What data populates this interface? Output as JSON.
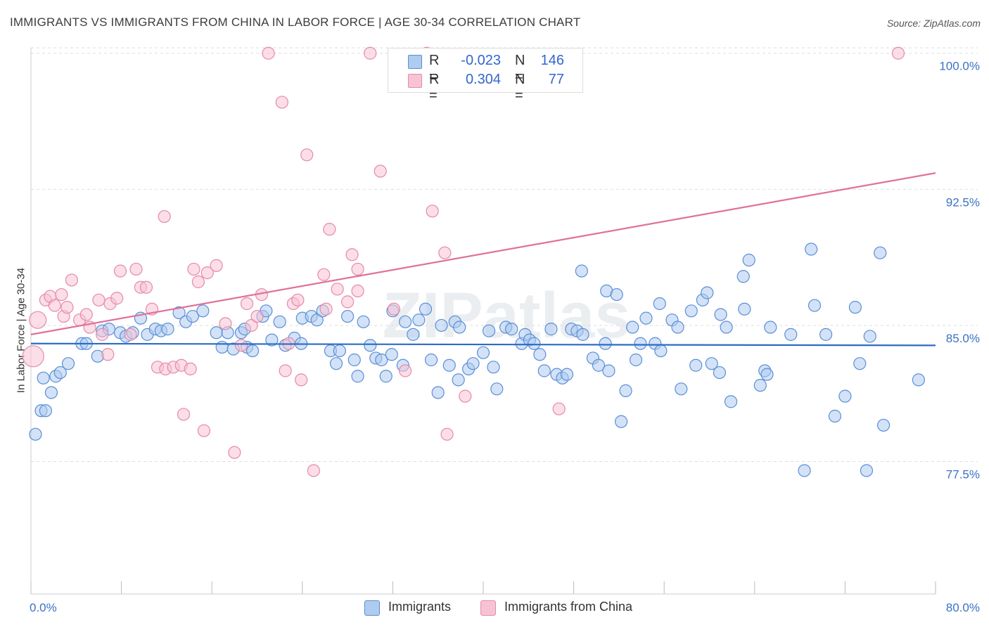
{
  "title": "IMMIGRANTS VS IMMIGRANTS FROM CHINA IN LABOR FORCE | AGE 30-34 CORRELATION CHART",
  "source_label": "Source:",
  "source_value": "ZipAtlas.com",
  "watermark": "ZIPatlas",
  "colors": {
    "blue_fill": "#aecbf0",
    "blue_stroke": "#5a8fd6",
    "blue_line": "#2b6cc4",
    "pink_fill": "#f7c3d3",
    "pink_stroke": "#e68aa8",
    "pink_line": "#e0709a",
    "axis_text": "#3a72c6",
    "grid": "#dddddd"
  },
  "legend": {
    "blue_r_label": "R =",
    "blue_r_value": "-0.023",
    "blue_n_label": "N =",
    "blue_n_value": "146",
    "pink_r_label": "R =",
    "pink_r_value": "0.304",
    "pink_n_label": "N =",
    "pink_n_value": "77",
    "series1": "Immigrants",
    "series2": "Immigrants from China"
  },
  "chart_data": {
    "type": "scatter",
    "title": "IMMIGRANTS VS IMMIGRANTS FROM CHINA IN LABOR FORCE | AGE 30-34 CORRELATION CHART",
    "xlabel": "",
    "ylabel": "In Labor Force | Age 30-34",
    "xlim": [
      0,
      80
    ],
    "ylim": [
      70.2,
      100.3
    ],
    "x_tick_labels": [
      "0.0%",
      "80.0%"
    ],
    "y_ticks": [
      77.5,
      85.0,
      92.5,
      100.0
    ],
    "y_tick_labels": [
      "77.5%",
      "85.0%",
      "92.5%",
      "100.0%"
    ],
    "grid": "horizontal dashed",
    "legend_position": "top-center",
    "series": [
      {
        "name": "Immigrants",
        "trend": [
          [
            0,
            84.0
          ],
          [
            80,
            83.9
          ]
        ],
        "points": [
          [
            0.4,
            79.0
          ],
          [
            0.9,
            80.3
          ],
          [
            1.1,
            82.1
          ],
          [
            1.3,
            80.3
          ],
          [
            1.8,
            81.3
          ],
          [
            2.2,
            82.2
          ],
          [
            2.6,
            82.4
          ],
          [
            3.3,
            82.9
          ],
          [
            4.5,
            84.0
          ],
          [
            4.9,
            84.0
          ],
          [
            5.9,
            83.3
          ],
          [
            6.3,
            84.7
          ],
          [
            6.9,
            84.8
          ],
          [
            7.9,
            84.6
          ],
          [
            8.4,
            84.4
          ],
          [
            9.0,
            84.6
          ],
          [
            9.7,
            85.4
          ],
          [
            10.3,
            84.5
          ],
          [
            11.0,
            84.8
          ],
          [
            11.5,
            84.7
          ],
          [
            12.1,
            84.8
          ],
          [
            13.1,
            85.7
          ],
          [
            13.7,
            85.2
          ],
          [
            14.3,
            85.5
          ],
          [
            15.2,
            85.8
          ],
          [
            16.4,
            84.6
          ],
          [
            16.9,
            83.8
          ],
          [
            17.4,
            84.6
          ],
          [
            17.9,
            83.7
          ],
          [
            18.6,
            84.6
          ],
          [
            18.9,
            84.8
          ],
          [
            19.1,
            83.8
          ],
          [
            19.6,
            83.6
          ],
          [
            20.5,
            85.5
          ],
          [
            20.8,
            85.8
          ],
          [
            21.3,
            84.2
          ],
          [
            22.0,
            85.2
          ],
          [
            22.5,
            83.9
          ],
          [
            23.3,
            84.3
          ],
          [
            23.9,
            84.0
          ],
          [
            24.0,
            85.4
          ],
          [
            24.8,
            85.5
          ],
          [
            25.3,
            85.3
          ],
          [
            25.8,
            85.8
          ],
          [
            26.5,
            83.6
          ],
          [
            27.0,
            82.9
          ],
          [
            27.3,
            83.6
          ],
          [
            28.0,
            85.5
          ],
          [
            28.6,
            83.1
          ],
          [
            28.9,
            82.2
          ],
          [
            29.4,
            85.2
          ],
          [
            30.0,
            83.9
          ],
          [
            30.5,
            83.2
          ],
          [
            31.0,
            83.1
          ],
          [
            31.4,
            82.2
          ],
          [
            31.9,
            83.4
          ],
          [
            32.0,
            85.8
          ],
          [
            32.9,
            82.8
          ],
          [
            33.1,
            85.2
          ],
          [
            33.8,
            84.5
          ],
          [
            34.3,
            85.3
          ],
          [
            34.9,
            85.9
          ],
          [
            35.4,
            83.1
          ],
          [
            36.0,
            81.3
          ],
          [
            36.3,
            85.0
          ],
          [
            37.0,
            82.8
          ],
          [
            37.5,
            85.2
          ],
          [
            37.9,
            84.9
          ],
          [
            37.8,
            82.0
          ],
          [
            38.7,
            82.6
          ],
          [
            39.1,
            82.9
          ],
          [
            40.0,
            83.5
          ],
          [
            40.5,
            84.7
          ],
          [
            40.9,
            82.7
          ],
          [
            41.2,
            81.5
          ],
          [
            42.0,
            84.9
          ],
          [
            42.5,
            84.8
          ],
          [
            43.4,
            84.0
          ],
          [
            43.7,
            84.5
          ],
          [
            44.1,
            84.2
          ],
          [
            44.5,
            84.0
          ],
          [
            45.0,
            83.4
          ],
          [
            45.4,
            82.5
          ],
          [
            46.0,
            84.8
          ],
          [
            46.5,
            82.3
          ],
          [
            47.0,
            82.1
          ],
          [
            47.4,
            82.3
          ],
          [
            47.8,
            84.8
          ],
          [
            48.3,
            84.7
          ],
          [
            48.8,
            84.5
          ],
          [
            48.7,
            88.0
          ],
          [
            49.7,
            83.2
          ],
          [
            50.2,
            82.8
          ],
          [
            50.8,
            84.0
          ],
          [
            50.9,
            86.9
          ],
          [
            51.1,
            82.5
          ],
          [
            51.8,
            86.7
          ],
          [
            52.2,
            79.7
          ],
          [
            52.6,
            81.4
          ],
          [
            53.2,
            84.9
          ],
          [
            53.5,
            83.1
          ],
          [
            53.9,
            84.0
          ],
          [
            54.4,
            85.4
          ],
          [
            55.2,
            84.0
          ],
          [
            55.7,
            83.6
          ],
          [
            55.6,
            86.2
          ],
          [
            56.7,
            85.3
          ],
          [
            57.2,
            84.9
          ],
          [
            57.5,
            81.5
          ],
          [
            58.4,
            85.8
          ],
          [
            58.8,
            82.8
          ],
          [
            59.4,
            86.4
          ],
          [
            59.8,
            86.8
          ],
          [
            60.2,
            82.9
          ],
          [
            61.0,
            85.6
          ],
          [
            60.9,
            82.4
          ],
          [
            61.5,
            84.9
          ],
          [
            61.9,
            80.8
          ],
          [
            63.0,
            87.7
          ],
          [
            63.5,
            88.6
          ],
          [
            63.1,
            85.9
          ],
          [
            64.5,
            81.7
          ],
          [
            64.9,
            82.5
          ],
          [
            65.1,
            82.3
          ],
          [
            65.4,
            84.9
          ],
          [
            67.2,
            84.5
          ],
          [
            68.4,
            77.0
          ],
          [
            69.0,
            89.2
          ],
          [
            69.3,
            86.1
          ],
          [
            70.3,
            84.5
          ],
          [
            71.1,
            80.0
          ],
          [
            72.0,
            81.1
          ],
          [
            72.9,
            86.0
          ],
          [
            73.3,
            82.9
          ],
          [
            73.9,
            77.0
          ],
          [
            74.2,
            84.4
          ],
          [
            75.1,
            89.0
          ],
          [
            75.4,
            79.5
          ],
          [
            78.5,
            82.0
          ]
        ]
      },
      {
        "name": "Immigrants from China",
        "trend": [
          [
            0,
            84.5
          ],
          [
            80,
            93.4
          ]
        ],
        "points": [
          [
            0.2,
            83.3
          ],
          [
            0.6,
            85.3
          ],
          [
            1.3,
            86.4
          ],
          [
            1.7,
            86.6
          ],
          [
            2.1,
            86.1
          ],
          [
            2.7,
            86.7
          ],
          [
            2.9,
            85.5
          ],
          [
            3.2,
            86.0
          ],
          [
            3.6,
            87.5
          ],
          [
            4.3,
            85.3
          ],
          [
            4.9,
            85.6
          ],
          [
            5.2,
            84.9
          ],
          [
            6.0,
            86.4
          ],
          [
            6.3,
            84.5
          ],
          [
            6.8,
            83.4
          ],
          [
            7.0,
            86.2
          ],
          [
            7.6,
            86.5
          ],
          [
            7.9,
            88.0
          ],
          [
            8.8,
            84.5
          ],
          [
            9.3,
            88.1
          ],
          [
            9.7,
            87.1
          ],
          [
            10.2,
            87.1
          ],
          [
            10.7,
            85.9
          ],
          [
            11.2,
            82.7
          ],
          [
            11.8,
            91.0
          ],
          [
            11.9,
            82.6
          ],
          [
            12.6,
            82.7
          ],
          [
            13.3,
            82.8
          ],
          [
            13.5,
            80.1
          ],
          [
            14.1,
            82.6
          ],
          [
            14.8,
            87.4
          ],
          [
            14.4,
            88.1
          ],
          [
            15.3,
            79.2
          ],
          [
            15.6,
            87.9
          ],
          [
            16.4,
            88.3
          ],
          [
            17.2,
            85.1
          ],
          [
            18.0,
            78.0
          ],
          [
            18.6,
            83.9
          ],
          [
            19.1,
            86.2
          ],
          [
            19.5,
            85.0
          ],
          [
            20.0,
            85.5
          ],
          [
            20.4,
            86.7
          ],
          [
            21.0,
            100.0
          ],
          [
            22.2,
            97.3
          ],
          [
            22.5,
            82.5
          ],
          [
            22.8,
            84.0
          ],
          [
            23.2,
            86.2
          ],
          [
            23.6,
            86.4
          ],
          [
            23.9,
            82.0
          ],
          [
            24.4,
            94.4
          ],
          [
            25.0,
            77.0
          ],
          [
            25.9,
            87.8
          ],
          [
            26.1,
            85.9
          ],
          [
            26.4,
            90.3
          ],
          [
            27.1,
            87.0
          ],
          [
            28.0,
            86.3
          ],
          [
            28.4,
            88.9
          ],
          [
            28.9,
            86.9
          ],
          [
            28.9,
            88.1
          ],
          [
            30.0,
            100.0
          ],
          [
            30.9,
            93.5
          ],
          [
            32.1,
            85.9
          ],
          [
            33.1,
            82.5
          ],
          [
            35.0,
            100.0
          ],
          [
            35.5,
            91.3
          ],
          [
            36.6,
            89.0
          ],
          [
            36.8,
            79.0
          ],
          [
            38.4,
            81.1
          ],
          [
            46.7,
            80.4
          ],
          [
            76.7,
            100.0
          ]
        ]
      }
    ]
  }
}
